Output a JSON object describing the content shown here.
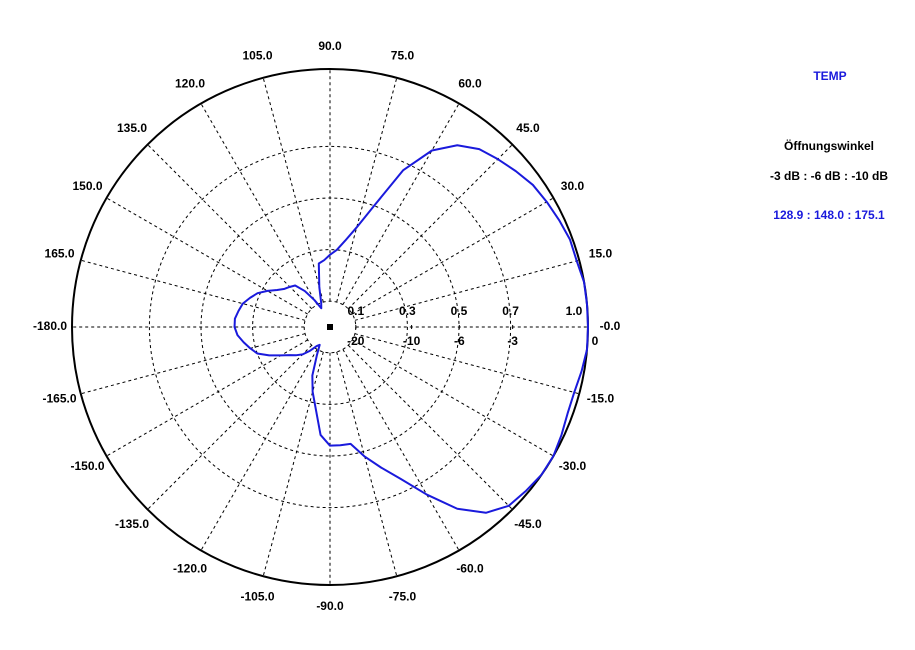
{
  "chart_data": {
    "type": "polar",
    "series": [
      {
        "name": "TEMP",
        "color": "#1a1adc",
        "values": [
          0.37,
          0.36,
          0.34,
          0.32,
          0.3,
          0.26,
          0.22,
          0.19,
          0.17,
          0.15,
          0.12,
          0.09,
          0.08,
          0.12,
          0.2,
          0.26,
          0.32,
          0.42,
          0.46,
          0.46,
          0.46,
          0.52,
          0.58,
          0.65,
          0.75,
          0.86,
          0.94,
          0.98,
          0.99,
          1.0,
          1.0,
          0.99,
          0.98,
          0.98,
          0.99,
          1.0,
          1.0,
          1.0,
          1.0,
          0.99,
          0.99,
          0.98,
          0.97,
          0.96,
          0.94,
          0.92,
          0.9,
          0.86,
          0.79,
          0.67,
          0.5,
          0.4,
          0.34,
          0.3,
          0.28,
          0.26,
          0.25,
          0.16,
          0.1,
          0.08,
          0.12,
          0.17,
          0.21,
          0.22,
          0.23,
          0.25,
          0.28,
          0.31,
          0.33,
          0.35,
          0.36,
          0.37
        ]
      }
    ],
    "x": [
      -180,
      -175,
      -170,
      -165,
      -160,
      -155,
      -150,
      -145,
      -140,
      -135,
      -130,
      -125,
      -120,
      -115,
      -110,
      -105,
      -100,
      -95,
      -90,
      -85,
      -80,
      -75,
      -70,
      -65,
      -60,
      -55,
      -50,
      -45,
      -40,
      -35,
      -30,
      -25,
      -20,
      -15,
      -10,
      -5,
      0,
      5,
      10,
      15,
      20,
      25,
      30,
      35,
      40,
      45,
      50,
      55,
      60,
      65,
      70,
      75,
      80,
      85,
      90,
      95,
      100,
      105,
      110,
      115,
      120,
      125,
      130,
      135,
      140,
      145,
      150,
      155,
      160,
      165,
      170,
      175
    ],
    "rlim": [
      0,
      1
    ],
    "rticks": [
      0.1,
      0.3,
      0.5,
      0.7,
      {
        "value": 1.0,
        "label": "1.0"
      }
    ],
    "db_ticks": [
      -20,
      -10,
      -6,
      -3,
      0
    ],
    "angle_ticks": [
      {
        "value": -180,
        "label": "-180.0"
      },
      {
        "value": -165,
        "label": "-165.0"
      },
      {
        "value": -150,
        "label": "-150.0"
      },
      {
        "value": -135,
        "label": "-135.0"
      },
      {
        "value": -120,
        "label": "-120.0"
      },
      {
        "value": -105,
        "label": "-105.0"
      },
      {
        "value": -90,
        "label": "-90.0"
      },
      {
        "value": -75,
        "label": "-75.0"
      },
      {
        "value": -60,
        "label": "-60.0"
      },
      {
        "value": -45,
        "label": "-45.0"
      },
      {
        "value": -30,
        "label": "-30.0"
      },
      {
        "value": -15,
        "label": "-15.0"
      },
      {
        "value": 0,
        "label": "-0.0"
      },
      {
        "value": 15,
        "label": "15.0"
      },
      {
        "value": 30,
        "label": "30.0"
      },
      {
        "value": 45,
        "label": "45.0"
      },
      {
        "value": 60,
        "label": "60.0"
      },
      {
        "value": 75,
        "label": "75.0"
      },
      {
        "value": 90,
        "label": "90.0"
      },
      {
        "value": 105,
        "label": "105.0"
      },
      {
        "value": 120,
        "label": "120.0"
      },
      {
        "value": 135,
        "label": "135.0"
      },
      {
        "value": 150,
        "label": "150.0"
      },
      {
        "value": 165,
        "label": "165.0"
      }
    ],
    "beamwidth_title": "Öffnungswinkel",
    "beamwidth_levels": "-3 dB : -6 dB : -10 dB",
    "beamwidth_values": "128.9 : 148.0 : 175.1"
  }
}
